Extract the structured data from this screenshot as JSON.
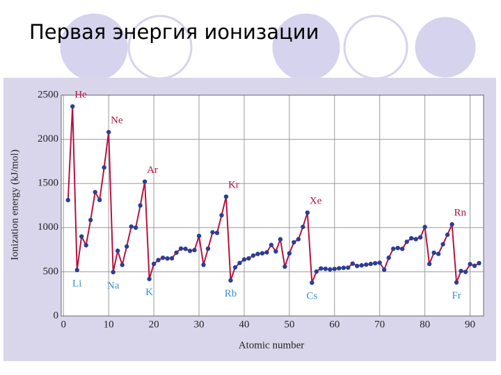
{
  "chart_data": {
    "type": "line",
    "title": "Первая энергия ионизации",
    "xlabel": "Atomic number",
    "ylabel": "Ionization energy (kJ/mol)",
    "x": [
      1,
      2,
      3,
      4,
      5,
      6,
      7,
      8,
      9,
      10,
      11,
      12,
      13,
      14,
      15,
      16,
      17,
      18,
      19,
      20,
      21,
      22,
      23,
      24,
      25,
      26,
      27,
      28,
      29,
      30,
      31,
      32,
      33,
      34,
      35,
      36,
      37,
      38,
      39,
      40,
      41,
      42,
      43,
      44,
      45,
      46,
      47,
      48,
      49,
      50,
      51,
      52,
      53,
      54,
      55,
      56,
      57,
      58,
      59,
      60,
      61,
      62,
      63,
      64,
      65,
      66,
      67,
      68,
      69,
      70,
      71,
      72,
      73,
      74,
      75,
      76,
      77,
      78,
      79,
      80,
      81,
      82,
      83,
      84,
      85,
      86,
      87,
      88,
      89,
      90,
      91,
      92
    ],
    "values": [
      1312,
      2372,
      520,
      900,
      801,
      1086,
      1402,
      1314,
      1681,
      2081,
      496,
      738,
      578,
      787,
      1012,
      1000,
      1251,
      1521,
      419,
      590,
      633,
      659,
      651,
      653,
      717,
      763,
      760,
      737,
      746,
      906,
      579,
      762,
      947,
      941,
      1140,
      1351,
      403,
      550,
      600,
      640,
      652,
      684,
      702,
      710,
      720,
      804,
      731,
      868,
      558,
      709,
      834,
      869,
      1008,
      1170,
      376,
      503,
      538,
      534,
      527,
      533,
      540,
      545,
      547,
      593,
      566,
      573,
      581,
      589,
      597,
      603,
      524,
      659,
      761,
      770,
      760,
      840,
      880,
      870,
      890,
      1007,
      589,
      716,
      703,
      812,
      920,
      1037,
      380,
      509,
      499,
      587,
      568,
      598
    ],
    "color": "#b5123f",
    "marker_color": "#2b3f93",
    "annotations": [
      {
        "text": "He",
        "x": 2
      },
      {
        "text": "Ne",
        "x": 10
      },
      {
        "text": "Ar",
        "x": 18
      },
      {
        "text": "Kr",
        "x": 36
      },
      {
        "text": "Xe",
        "x": 54
      },
      {
        "text": "Rn",
        "x": 86
      },
      {
        "text": "Li",
        "x": 3
      },
      {
        "text": "Na",
        "x": 11
      },
      {
        "text": "K",
        "x": 19
      },
      {
        "text": "Rb",
        "x": 37
      },
      {
        "text": "Cs",
        "x": 55
      },
      {
        "text": "Fr",
        "x": 87
      }
    ],
    "xlim": [
      -0.5,
      93
    ],
    "xticks": [
      0,
      10,
      20,
      30,
      40,
      50,
      60,
      70,
      80,
      90
    ],
    "ylim": [
      0,
      2500
    ],
    "yticks": [
      0,
      500,
      1000,
      1500,
      2000,
      2500
    ],
    "grid": true
  }
}
